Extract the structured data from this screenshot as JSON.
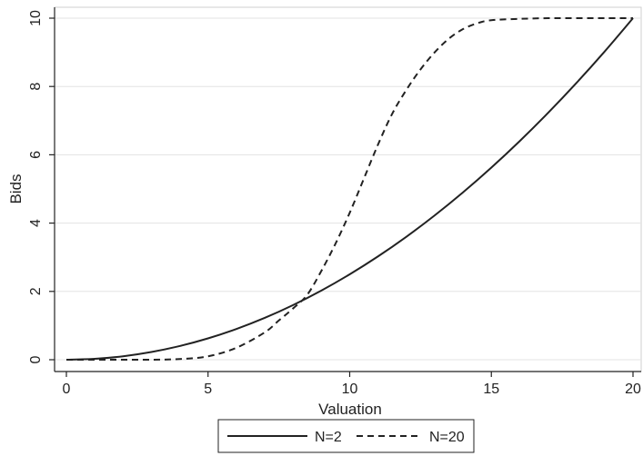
{
  "chart_data": {
    "type": "line",
    "xlabel": "Valuation",
    "ylabel": "Bids",
    "xlim": [
      0,
      20
    ],
    "ylim": [
      0,
      10
    ],
    "x_ticks": [
      0,
      5,
      10,
      15,
      20
    ],
    "y_ticks": [
      0,
      2,
      4,
      6,
      8,
      10
    ],
    "grid": true,
    "legend_position": "bottom",
    "series": [
      {
        "name": "N=2",
        "style": "solid",
        "color": "#222222",
        "x": [
          0,
          1,
          2,
          3,
          4,
          5,
          6,
          7,
          8,
          9,
          10,
          11,
          12,
          13,
          14,
          15,
          16,
          17,
          18,
          19,
          20
        ],
        "y": [
          0,
          0.025,
          0.1,
          0.225,
          0.4,
          0.625,
          0.9,
          1.225,
          1.6,
          2.025,
          2.5,
          3.025,
          3.6,
          4.225,
          4.9,
          5.625,
          6.4,
          7.225,
          8.1,
          9.025,
          10
        ]
      },
      {
        "name": "N=20",
        "style": "dashed",
        "color": "#222222",
        "x": [
          0,
          1,
          2,
          3,
          4,
          5,
          6,
          7,
          7.5,
          8,
          8.5,
          9,
          9.5,
          10,
          10.5,
          11,
          11.5,
          12,
          12.5,
          13,
          13.5,
          14,
          14.5,
          15,
          16,
          17,
          18,
          19,
          20
        ],
        "y": [
          0,
          0,
          0,
          0,
          0.02,
          0.1,
          0.35,
          0.8,
          1.15,
          1.5,
          1.9,
          2.6,
          3.4,
          4.3,
          5.3,
          6.3,
          7.2,
          7.9,
          8.5,
          9.0,
          9.4,
          9.68,
          9.85,
          9.94,
          9.98,
          10,
          10,
          10,
          10
        ]
      }
    ]
  }
}
